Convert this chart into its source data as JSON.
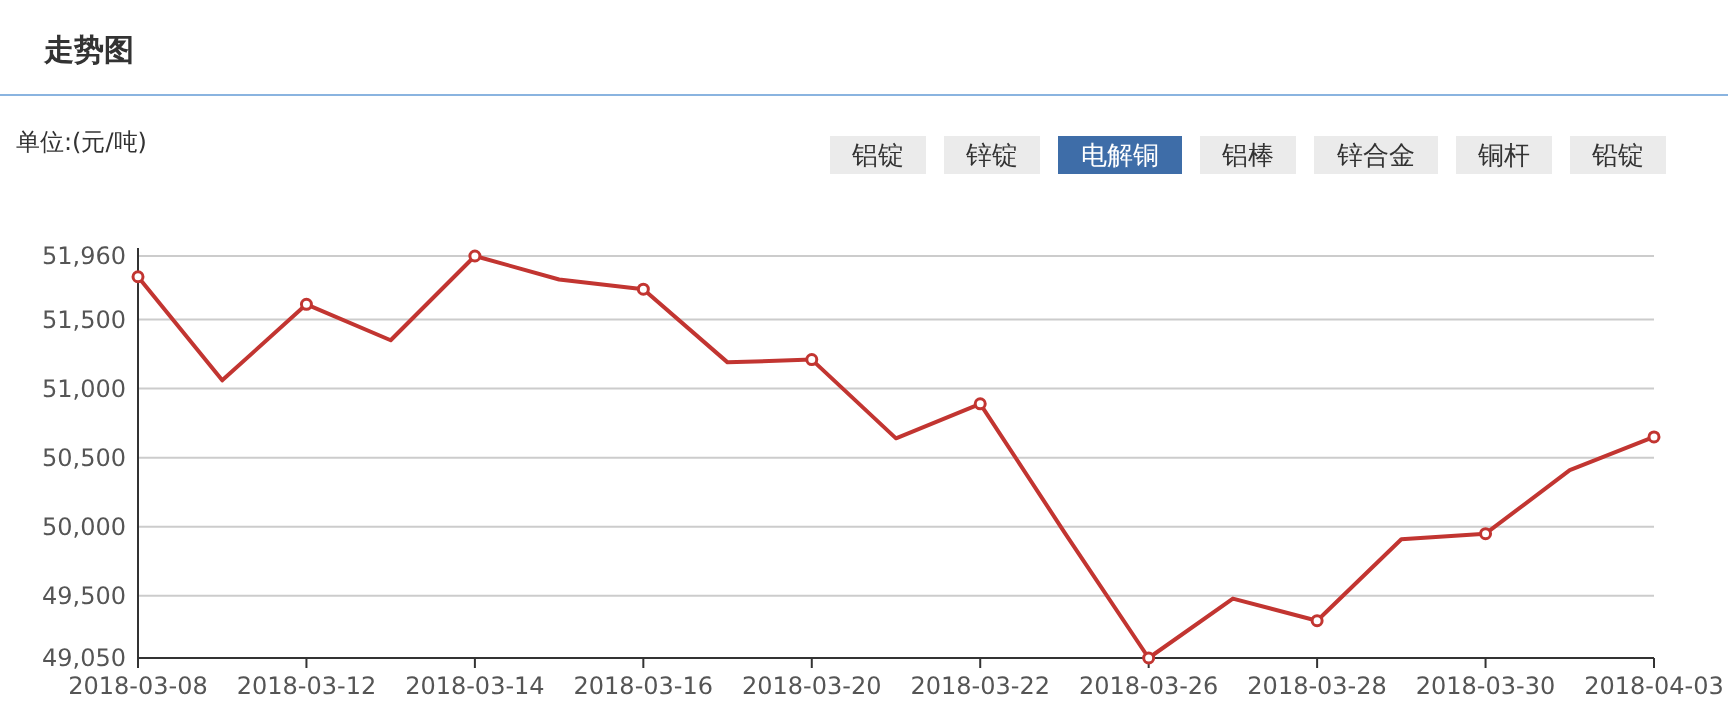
{
  "chart_data": {
    "type": "line",
    "title": "走势图",
    "annotations": [
      "单位:(元/吨)",
      "铝锭",
      "锌锭",
      null,
      "铝棒",
      "锌合金",
      "铜杆",
      "铅锭"
    ],
    "categories": [
      "2018-03-08",
      null,
      "2018-03-12",
      null,
      "2018-03-14",
      null,
      "2018-03-16",
      null,
      "2018-03-20",
      null,
      "2018-03-22",
      null,
      "2018-03-26",
      null,
      "2018-03-28",
      null,
      "2018-03-30",
      null,
      "2018-04-03"
    ],
    "series": [
      {
        "name": "电解铜",
        "color": "#c23531",
        "values": [
          51810,
          51060,
          51610,
          51350,
          51960,
          51790,
          51720,
          51190,
          51210,
          50640,
          50890,
          49960,
          49050,
          49480,
          49320,
          49910,
          49950,
          50410,
          50650
        ]
      }
    ],
    "ylim": [
      49050,
      51960
    ],
    "yticks": [
      {
        "value": 49050,
        "label": "49,050"
      },
      {
        "value": 49500,
        "label": "49,500"
      },
      {
        "value": 50000,
        "label": "50,000"
      },
      {
        "value": 50500,
        "label": "50,500"
      },
      {
        "value": 51000,
        "label": "51,000"
      },
      {
        "value": 51500,
        "label": "51,500"
      },
      {
        "value": 51960,
        "label": "51,960"
      }
    ],
    "grid": "y",
    "marker": "circle",
    "line_style": "solid",
    "legend": "top right"
  }
}
